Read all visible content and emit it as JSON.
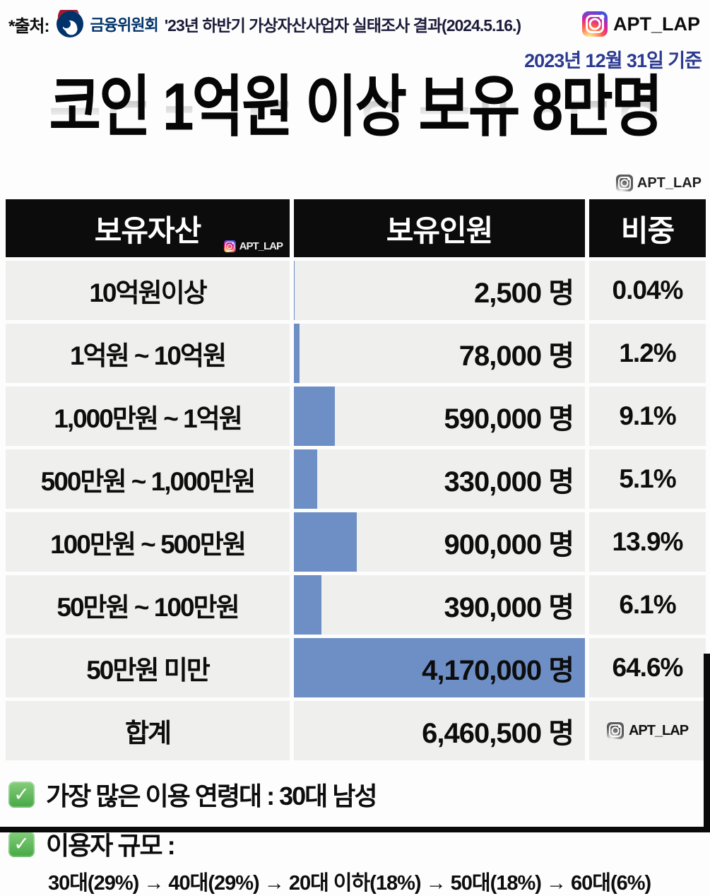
{
  "colors": {
    "bar_blue": "#6e8fc5",
    "date_navy": "#2b3990",
    "header_black": "#0c0c0c",
    "row_gray": "#efefee",
    "check_green": "#45a843",
    "org_navy": "#00336a",
    "org_red": "#9e1b32"
  },
  "source": {
    "prefix": "*출처:",
    "org_logo_icon": "fsc-taegeuk-logo",
    "org": "금융위원회",
    "report": "'23년 하반기 가상자산사업자 실태조사 결과(2024.5.16.)",
    "instagram_icon": "instagram-icon",
    "instagram_handle": "APT_LAP"
  },
  "as_of_date": "2023년 12월 31일 기준",
  "title": "코인 1억원 이상 보유 8만명",
  "title_watermark": {
    "icon": "instagram-icon",
    "handle": "APT_LAP"
  },
  "table": {
    "headers": {
      "asset": "보유자산",
      "holders": "보유인원",
      "share": "비중"
    },
    "header_watermark": {
      "icon": "instagram-icon",
      "handle": "APT_LAP"
    },
    "rows": [
      {
        "asset": "10억원이상",
        "holders": "2,500 명",
        "share": "0.04%"
      },
      {
        "asset": "1억원 ~ 10억원",
        "holders": "78,000 명",
        "share": "1.2%"
      },
      {
        "asset": "1,000만원 ~ 1억원",
        "holders": "590,000 명",
        "share": "9.1%"
      },
      {
        "asset": "500만원 ~ 1,000만원",
        "holders": "330,000 명",
        "share": "5.1%"
      },
      {
        "asset": "100만원 ~ 500만원",
        "holders": "900,000 명",
        "share": "13.9%"
      },
      {
        "asset": "50만원 ~ 100만원",
        "holders": "390,000 명",
        "share": "6.1%"
      },
      {
        "asset": "50만원 미만",
        "holders": "4,170,000 명",
        "share": "64.6%"
      }
    ],
    "total_row": {
      "asset": "합계",
      "holders": "6,460,500 명",
      "watermark_icon": "instagram-icon",
      "watermark_handle": "APT_LAP"
    }
  },
  "notes": [
    {
      "icon": "check-icon",
      "text": "가장 많은 이용 연령대 : 30대 남성"
    },
    {
      "icon": "check-icon",
      "text": "이용자 규모 :",
      "detail": "30대(29%) → 40대(29%) → 20대 이하(18%) → 50대(18%) → 60대(6%)"
    }
  ],
  "chart_data": {
    "type": "bar",
    "orientation": "horizontal",
    "title": "코인 1억원 이상 보유 8만명",
    "subtitle": "2023년 12월 31일 기준",
    "categories": [
      "10억원이상",
      "1억원 ~ 10억원",
      "1,000만원 ~ 1억원",
      "500만원 ~ 1,000만원",
      "100만원 ~ 500만원",
      "50만원 ~ 100만원",
      "50만원 미만"
    ],
    "values": [
      2500,
      78000,
      590000,
      330000,
      900000,
      390000,
      4170000
    ],
    "share_percent": [
      0.04,
      1.2,
      9.1,
      5.1,
      13.9,
      6.1,
      64.6
    ],
    "total_holders": 6460500,
    "unit": "명",
    "value_axis_max": 4170000,
    "bar_color": "#6e8fc5",
    "grid": false,
    "legend": false
  }
}
